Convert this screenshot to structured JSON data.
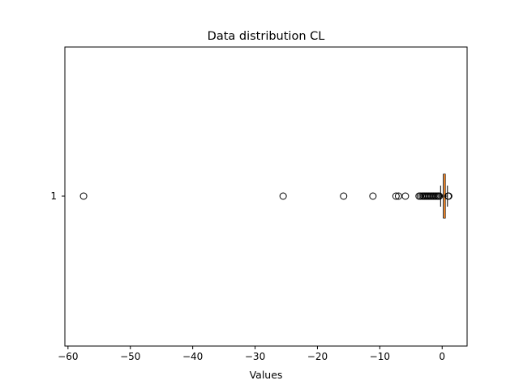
{
  "chart_data": {
    "type": "boxplot",
    "orientation": "horizontal",
    "title": "Data distribution CL",
    "xlabel": "Values",
    "ylabel": "",
    "xlim": [
      -60.5,
      4.0
    ],
    "xticks": [
      -60,
      -50,
      -40,
      -30,
      -20,
      -10,
      0
    ],
    "xtick_labels": [
      "−60",
      "−50",
      "−40",
      "−30",
      "−20",
      "−10",
      "0"
    ],
    "categories": [
      "1"
    ],
    "boxes": [
      {
        "category": "1",
        "whisker_low": -0.25,
        "q1": 0.2,
        "median": 0.4,
        "q3": 0.5,
        "whisker_high": 0.85,
        "outliers": [
          -57.5,
          -25.5,
          -15.8,
          -11.1,
          -7.4,
          -7.0,
          -5.9,
          -3.7,
          -3.5,
          -3.2,
          -3.0,
          -2.8,
          -2.6,
          -2.4,
          -2.2,
          -2.0,
          -1.8,
          -1.6,
          -1.4,
          -1.2,
          -1.0,
          -0.8,
          -0.6,
          -0.45,
          0.95,
          1.05
        ]
      }
    ],
    "colors": {
      "median": "#ff7f0e",
      "box": "#000000",
      "outlier_edge": "#000000"
    },
    "grid": false,
    "legend": "none"
  }
}
